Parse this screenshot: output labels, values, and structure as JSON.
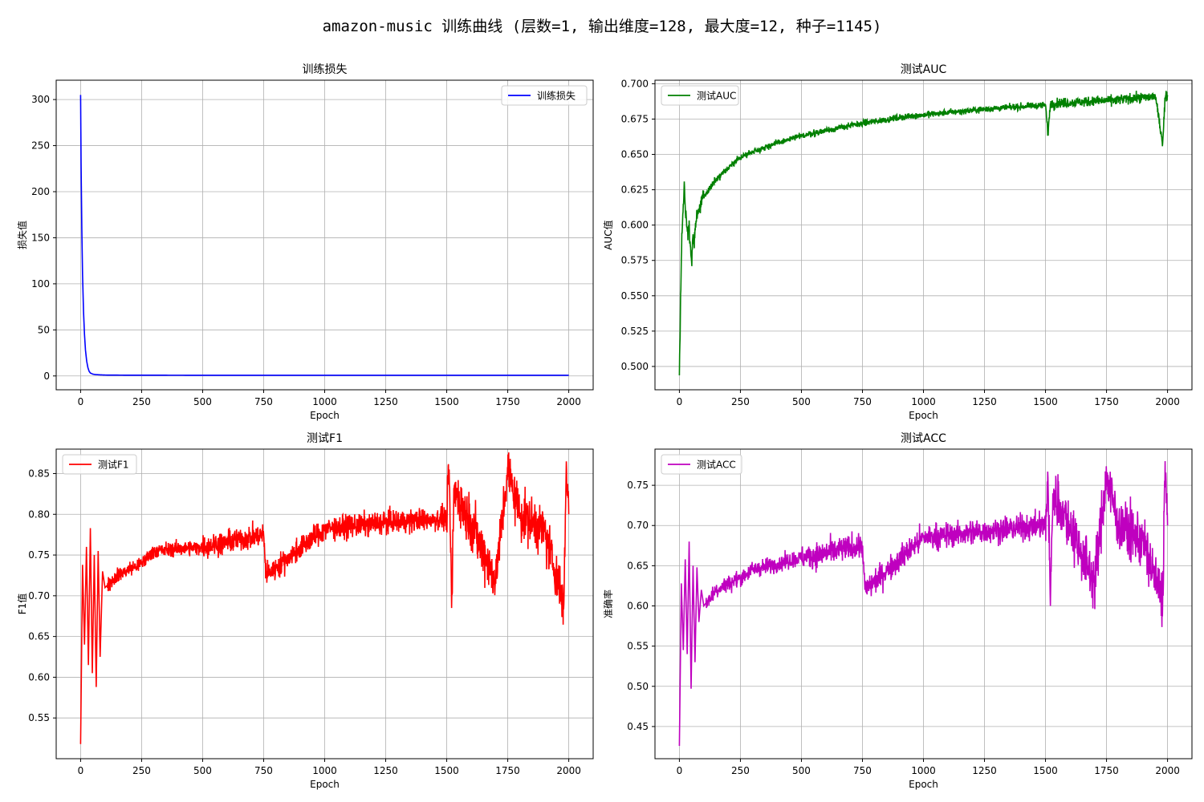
{
  "figure": {
    "title": "amazon-music 训练曲线 (层数=1, 输出维度=128, 最大度=12, 种子=1145)"
  },
  "chart_data": [
    {
      "id": "loss",
      "type": "line",
      "title": "训练损失",
      "xlabel": "Epoch",
      "ylabel": "损失值",
      "xlim": [
        -100,
        2100
      ],
      "ylim": [
        -15,
        321
      ],
      "xticks": [
        0,
        250,
        500,
        750,
        1000,
        1250,
        1500,
        1750,
        2000
      ],
      "yticks": [
        0,
        50,
        100,
        150,
        200,
        250,
        300
      ],
      "ytick_labels": [
        "0",
        "50",
        "100",
        "150",
        "200",
        "250",
        "300"
      ],
      "grid": true,
      "legend_position": "upper right",
      "series": [
        {
          "name": "训练损失",
          "color": "#0000ff",
          "x": [
            0,
            2,
            5,
            8,
            12,
            16,
            20,
            25,
            30,
            35,
            40,
            50,
            60,
            80,
            100,
            150,
            200,
            300,
            500,
            1000,
            1500,
            2000
          ],
          "y": [
            305,
            230,
            160,
            110,
            70,
            45,
            28,
            16,
            9,
            5,
            3.2,
            2.0,
            1.5,
            1.2,
            1.0,
            0.9,
            0.85,
            0.8,
            0.75,
            0.7,
            0.7,
            0.7
          ]
        }
      ]
    },
    {
      "id": "auc",
      "type": "line",
      "title": "测试AUC",
      "xlabel": "Epoch",
      "ylabel": "AUC值",
      "xlim": [
        -100,
        2100
      ],
      "ylim": [
        0.4835,
        0.7025
      ],
      "xticks": [
        0,
        250,
        500,
        750,
        1000,
        1250,
        1500,
        1750,
        2000
      ],
      "yticks": [
        0.5,
        0.525,
        0.55,
        0.575,
        0.6,
        0.625,
        0.65,
        0.675,
        0.7
      ],
      "ytick_labels": [
        "0.500",
        "0.525",
        "0.550",
        "0.575",
        "0.600",
        "0.625",
        "0.650",
        "0.675",
        "0.700"
      ],
      "grid": true,
      "legend_position": "upper left",
      "series": [
        {
          "name": "测试AUC",
          "color": "#008000",
          "x": [
            0,
            5,
            10,
            15,
            20,
            25,
            30,
            35,
            40,
            45,
            50,
            55,
            60,
            70,
            80,
            100,
            150,
            200,
            250,
            300,
            400,
            500,
            600,
            750,
            900,
            1000,
            1250,
            1500,
            1510,
            1520,
            1750,
            1950,
            1980,
            1990,
            2000
          ],
          "y": [
            0.492,
            0.55,
            0.59,
            0.61,
            0.628,
            0.612,
            0.598,
            0.593,
            0.596,
            0.585,
            0.574,
            0.59,
            0.588,
            0.605,
            0.612,
            0.62,
            0.632,
            0.64,
            0.648,
            0.652,
            0.658,
            0.663,
            0.667,
            0.672,
            0.676,
            0.678,
            0.682,
            0.685,
            0.664,
            0.686,
            0.688,
            0.691,
            0.658,
            0.69,
            0.692
          ]
        }
      ]
    },
    {
      "id": "f1",
      "type": "line",
      "title": "测试F1",
      "xlabel": "Epoch",
      "ylabel": "F1值",
      "xlim": [
        -100,
        2100
      ],
      "ylim": [
        0.5,
        0.88
      ],
      "xticks": [
        0,
        250,
        500,
        750,
        1000,
        1250,
        1500,
        1750,
        2000
      ],
      "yticks": [
        0.55,
        0.6,
        0.65,
        0.7,
        0.75,
        0.8,
        0.85
      ],
      "ytick_labels": [
        "0.55",
        "0.60",
        "0.65",
        "0.70",
        "0.75",
        "0.80",
        "0.85"
      ],
      "grid": true,
      "legend_position": "upper left",
      "series": [
        {
          "name": "测试F1",
          "color": "#ff0000",
          "x": [
            0,
            8,
            16,
            24,
            32,
            40,
            48,
            56,
            64,
            72,
            80,
            90,
            100,
            150,
            250,
            300,
            500,
            750,
            760,
            1000,
            1250,
            1500,
            1510,
            1520,
            1530,
            1600,
            1700,
            1750,
            1800,
            1900,
            1980,
            1990,
            2000
          ],
          "y": [
            0.518,
            0.738,
            0.64,
            0.76,
            0.615,
            0.783,
            0.605,
            0.75,
            0.588,
            0.755,
            0.625,
            0.73,
            0.71,
            0.725,
            0.74,
            0.755,
            0.76,
            0.775,
            0.725,
            0.782,
            0.79,
            0.795,
            0.855,
            0.685,
            0.83,
            0.79,
            0.72,
            0.855,
            0.8,
            0.78,
            0.69,
            0.865,
            0.8
          ]
        }
      ]
    },
    {
      "id": "acc",
      "type": "line",
      "title": "测试ACC",
      "xlabel": "Epoch",
      "ylabel": "准确率",
      "xlim": [
        -100,
        2100
      ],
      "ylim": [
        0.41,
        0.795
      ],
      "xticks": [
        0,
        250,
        500,
        750,
        1000,
        1250,
        1500,
        1750,
        2000
      ],
      "yticks": [
        0.45,
        0.5,
        0.55,
        0.6,
        0.65,
        0.7,
        0.75
      ],
      "ytick_labels": [
        "0.45",
        "0.50",
        "0.55",
        "0.60",
        "0.65",
        "0.70",
        "0.75"
      ],
      "grid": true,
      "legend_position": "upper left",
      "series": [
        {
          "name": "测试ACC",
          "color": "#bf00bf",
          "x": [
            0,
            8,
            16,
            24,
            32,
            40,
            48,
            56,
            64,
            72,
            80,
            90,
            100,
            150,
            250,
            300,
            500,
            750,
            760,
            1000,
            1250,
            1500,
            1510,
            1520,
            1530,
            1600,
            1700,
            1750,
            1800,
            1900,
            1980,
            1990,
            2000
          ],
          "y": [
            0.426,
            0.628,
            0.545,
            0.658,
            0.54,
            0.68,
            0.497,
            0.65,
            0.53,
            0.648,
            0.58,
            0.62,
            0.6,
            0.62,
            0.635,
            0.645,
            0.66,
            0.675,
            0.62,
            0.685,
            0.693,
            0.7,
            0.76,
            0.6,
            0.74,
            0.7,
            0.63,
            0.76,
            0.7,
            0.68,
            0.605,
            0.78,
            0.7
          ]
        }
      ]
    }
  ]
}
